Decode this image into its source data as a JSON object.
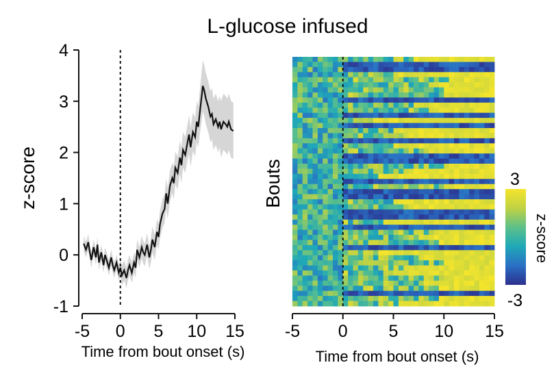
{
  "title": "L-glucose infused",
  "chart_data": [
    {
      "type": "line",
      "xlabel": "Time from bout onset (s)",
      "ylabel": "z-score",
      "xlim": [
        -5,
        15
      ],
      "ylim": [
        -1,
        4
      ],
      "xticks": [
        "-5",
        "0",
        "5",
        "10",
        "15"
      ],
      "yticks": [
        "-1",
        "0",
        "1",
        "2",
        "3",
        "4"
      ],
      "onset_marker_x": 0,
      "series": [
        {
          "x": [
            -4.8,
            -4.5,
            -4.2,
            -4.0,
            -3.8,
            -3.5,
            -3.2,
            -3.0,
            -2.8,
            -2.5,
            -2.2,
            -2.0,
            -1.8,
            -1.5,
            -1.2,
            -1.0,
            -0.8,
            -0.5,
            -0.2,
            0.0,
            0.2,
            0.5,
            0.8,
            1.0,
            1.2,
            1.5,
            1.8,
            2.0,
            2.2,
            2.5,
            2.8,
            3.0,
            3.2,
            3.5,
            3.8,
            4.0,
            4.2,
            4.5,
            4.8,
            5.0,
            5.2,
            5.5,
            5.8,
            6.0,
            6.2,
            6.5,
            6.8,
            7.0,
            7.2,
            7.5,
            7.8,
            8.0,
            8.2,
            8.5,
            8.8,
            9.0,
            9.2,
            9.5,
            9.8,
            10.0,
            10.2,
            10.5,
            10.8,
            11.0,
            11.2,
            11.5,
            11.8,
            12.0,
            12.2,
            12.5,
            12.8,
            13.0,
            13.2,
            13.5,
            13.8,
            14.0,
            14.2,
            14.5,
            14.8
          ],
          "values": [
            0.22,
            0.1,
            0.25,
            0.05,
            -0.1,
            0.15,
            -0.05,
            0.2,
            -0.15,
            0.05,
            -0.2,
            0.0,
            -0.1,
            -0.25,
            -0.05,
            -0.2,
            -0.3,
            -0.15,
            -0.35,
            -0.25,
            -0.4,
            -0.3,
            -0.45,
            -0.3,
            -0.2,
            -0.35,
            -0.15,
            -0.25,
            0.1,
            -0.05,
            0.15,
            0.05,
            0.0,
            0.2,
            -0.05,
            0.1,
            0.3,
            0.15,
            0.45,
            0.35,
            0.6,
            0.8,
            0.9,
            1.2,
            1.0,
            1.35,
            1.5,
            1.4,
            1.7,
            1.6,
            1.9,
            1.75,
            2.05,
            1.95,
            2.2,
            2.35,
            2.1,
            2.4,
            2.3,
            2.6,
            2.5,
            2.9,
            3.3,
            3.2,
            3.05,
            2.9,
            2.7,
            2.75,
            2.55,
            2.65,
            2.5,
            2.6,
            2.45,
            2.6,
            2.55,
            2.5,
            2.6,
            2.45,
            2.42
          ],
          "ci_halfwidth": [
            0.15,
            0.15,
            0.15,
            0.15,
            0.15,
            0.15,
            0.15,
            0.15,
            0.15,
            0.15,
            0.15,
            0.15,
            0.15,
            0.15,
            0.15,
            0.15,
            0.15,
            0.15,
            0.15,
            0.15,
            0.2,
            0.2,
            0.2,
            0.2,
            0.2,
            0.2,
            0.2,
            0.2,
            0.2,
            0.2,
            0.22,
            0.22,
            0.22,
            0.22,
            0.22,
            0.25,
            0.25,
            0.25,
            0.25,
            0.25,
            0.28,
            0.28,
            0.28,
            0.3,
            0.3,
            0.3,
            0.3,
            0.32,
            0.32,
            0.32,
            0.32,
            0.35,
            0.35,
            0.35,
            0.35,
            0.38,
            0.38,
            0.38,
            0.38,
            0.4,
            0.4,
            0.45,
            0.5,
            0.5,
            0.5,
            0.5,
            0.5,
            0.5,
            0.5,
            0.5,
            0.5,
            0.5,
            0.55,
            0.55,
            0.55,
            0.55,
            0.55,
            0.55,
            0.55
          ]
        }
      ]
    },
    {
      "type": "heatmap",
      "xlabel": "Time from bout onset (s)",
      "ylabel": "Bouts",
      "xlim": [
        -5,
        15
      ],
      "xticks": [
        "-5",
        "0",
        "5",
        "10",
        "15"
      ],
      "onset_marker_x": 0,
      "colorbar": {
        "label": "z-score",
        "min": -3,
        "max": 3,
        "min_label": "-3",
        "max_label": "3",
        "colors": [
          "#2b2f8c",
          "#2a6fc4",
          "#1fa8b8",
          "#5cc08a",
          "#bfd244",
          "#f5e52b"
        ]
      },
      "n_bouts": 49,
      "n_timebins": 40,
      "pattern": "mixed blue/teal before onset; after onset most bouts shift to yellow (high z-score), with a subset of rows remaining dark blue"
    }
  ]
}
